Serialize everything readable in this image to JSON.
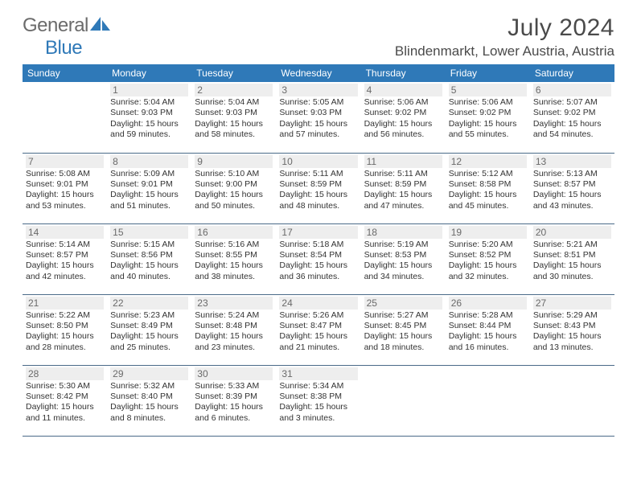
{
  "logo": {
    "part1": "General",
    "part2": "Blue"
  },
  "title": "July 2024",
  "location": "Blindenmarkt, Lower Austria, Austria",
  "header_color": "#2f79b8",
  "header_text_color": "#ffffff",
  "daynum_bg": "#eeeeee",
  "border_color": "#4a6a88",
  "body_text_color": "#333333",
  "font_family": "Arial, Helvetica, sans-serif",
  "fontsize_title": 30,
  "fontsize_location": 17,
  "fontsize_dayheader": 12,
  "fontsize_daynum": 12,
  "fontsize_cell": 10.5,
  "weekdays": [
    "Sunday",
    "Monday",
    "Tuesday",
    "Wednesday",
    "Thursday",
    "Friday",
    "Saturday"
  ],
  "weeks": [
    [
      null,
      {
        "n": "1",
        "sr": "5:04 AM",
        "ss": "9:03 PM",
        "dl": "15 hours and 59 minutes."
      },
      {
        "n": "2",
        "sr": "5:04 AM",
        "ss": "9:03 PM",
        "dl": "15 hours and 58 minutes."
      },
      {
        "n": "3",
        "sr": "5:05 AM",
        "ss": "9:03 PM",
        "dl": "15 hours and 57 minutes."
      },
      {
        "n": "4",
        "sr": "5:06 AM",
        "ss": "9:02 PM",
        "dl": "15 hours and 56 minutes."
      },
      {
        "n": "5",
        "sr": "5:06 AM",
        "ss": "9:02 PM",
        "dl": "15 hours and 55 minutes."
      },
      {
        "n": "6",
        "sr": "5:07 AM",
        "ss": "9:02 PM",
        "dl": "15 hours and 54 minutes."
      }
    ],
    [
      {
        "n": "7",
        "sr": "5:08 AM",
        "ss": "9:01 PM",
        "dl": "15 hours and 53 minutes."
      },
      {
        "n": "8",
        "sr": "5:09 AM",
        "ss": "9:01 PM",
        "dl": "15 hours and 51 minutes."
      },
      {
        "n": "9",
        "sr": "5:10 AM",
        "ss": "9:00 PM",
        "dl": "15 hours and 50 minutes."
      },
      {
        "n": "10",
        "sr": "5:11 AM",
        "ss": "8:59 PM",
        "dl": "15 hours and 48 minutes."
      },
      {
        "n": "11",
        "sr": "5:11 AM",
        "ss": "8:59 PM",
        "dl": "15 hours and 47 minutes."
      },
      {
        "n": "12",
        "sr": "5:12 AM",
        "ss": "8:58 PM",
        "dl": "15 hours and 45 minutes."
      },
      {
        "n": "13",
        "sr": "5:13 AM",
        "ss": "8:57 PM",
        "dl": "15 hours and 43 minutes."
      }
    ],
    [
      {
        "n": "14",
        "sr": "5:14 AM",
        "ss": "8:57 PM",
        "dl": "15 hours and 42 minutes."
      },
      {
        "n": "15",
        "sr": "5:15 AM",
        "ss": "8:56 PM",
        "dl": "15 hours and 40 minutes."
      },
      {
        "n": "16",
        "sr": "5:16 AM",
        "ss": "8:55 PM",
        "dl": "15 hours and 38 minutes."
      },
      {
        "n": "17",
        "sr": "5:18 AM",
        "ss": "8:54 PM",
        "dl": "15 hours and 36 minutes."
      },
      {
        "n": "18",
        "sr": "5:19 AM",
        "ss": "8:53 PM",
        "dl": "15 hours and 34 minutes."
      },
      {
        "n": "19",
        "sr": "5:20 AM",
        "ss": "8:52 PM",
        "dl": "15 hours and 32 minutes."
      },
      {
        "n": "20",
        "sr": "5:21 AM",
        "ss": "8:51 PM",
        "dl": "15 hours and 30 minutes."
      }
    ],
    [
      {
        "n": "21",
        "sr": "5:22 AM",
        "ss": "8:50 PM",
        "dl": "15 hours and 28 minutes."
      },
      {
        "n": "22",
        "sr": "5:23 AM",
        "ss": "8:49 PM",
        "dl": "15 hours and 25 minutes."
      },
      {
        "n": "23",
        "sr": "5:24 AM",
        "ss": "8:48 PM",
        "dl": "15 hours and 23 minutes."
      },
      {
        "n": "24",
        "sr": "5:26 AM",
        "ss": "8:47 PM",
        "dl": "15 hours and 21 minutes."
      },
      {
        "n": "25",
        "sr": "5:27 AM",
        "ss": "8:45 PM",
        "dl": "15 hours and 18 minutes."
      },
      {
        "n": "26",
        "sr": "5:28 AM",
        "ss": "8:44 PM",
        "dl": "15 hours and 16 minutes."
      },
      {
        "n": "27",
        "sr": "5:29 AM",
        "ss": "8:43 PM",
        "dl": "15 hours and 13 minutes."
      }
    ],
    [
      {
        "n": "28",
        "sr": "5:30 AM",
        "ss": "8:42 PM",
        "dl": "15 hours and 11 minutes."
      },
      {
        "n": "29",
        "sr": "5:32 AM",
        "ss": "8:40 PM",
        "dl": "15 hours and 8 minutes."
      },
      {
        "n": "30",
        "sr": "5:33 AM",
        "ss": "8:39 PM",
        "dl": "15 hours and 6 minutes."
      },
      {
        "n": "31",
        "sr": "5:34 AM",
        "ss": "8:38 PM",
        "dl": "15 hours and 3 minutes."
      },
      null,
      null,
      null
    ]
  ],
  "labels": {
    "sunrise": "Sunrise:",
    "sunset": "Sunset:",
    "daylight": "Daylight:"
  }
}
